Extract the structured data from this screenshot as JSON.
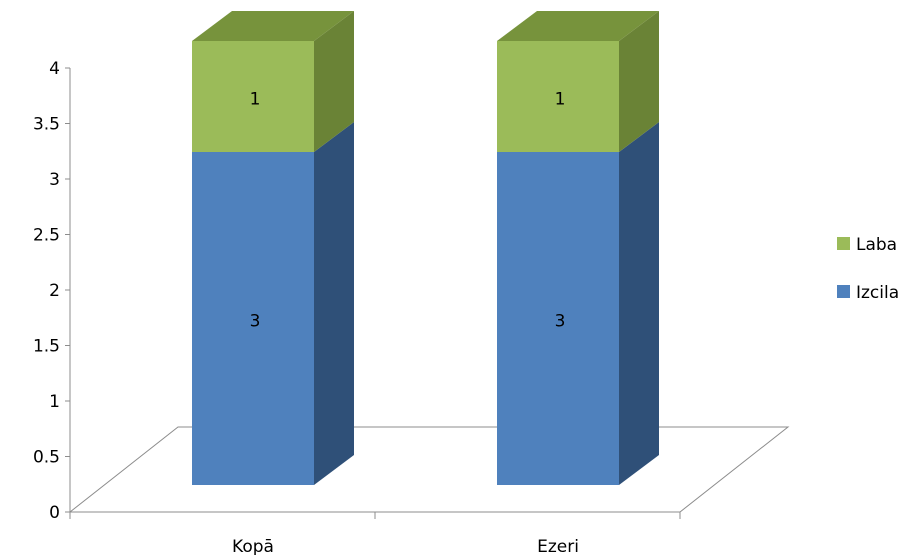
{
  "chart_data": {
    "type": "bar",
    "stacked": true,
    "three_d": true,
    "categories": [
      "Kopā",
      "Ezeri"
    ],
    "series": [
      {
        "name": "Izcila",
        "values": [
          3,
          3
        ],
        "color": "#4F81BD",
        "side_color": "#2F5078"
      },
      {
        "name": "Laba",
        "values": [
          1,
          1
        ],
        "color": "#9BBB59",
        "side_color": "#6A8336",
        "top_color": "#77933C"
      }
    ],
    "yticks": [
      "0",
      "0.5",
      "1",
      "1.5",
      "2",
      "2.5",
      "3",
      "3.5",
      "4"
    ],
    "ylim": [
      0,
      4
    ],
    "legend_position": "right",
    "grid": false
  }
}
